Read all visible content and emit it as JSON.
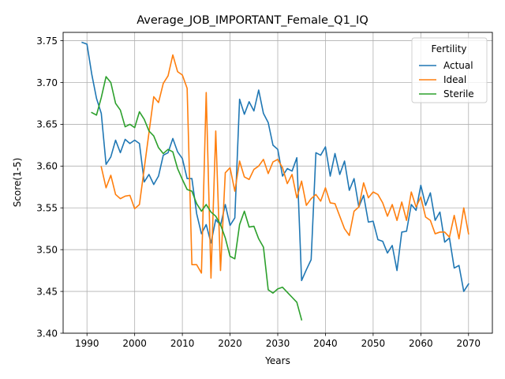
{
  "chart_data": {
    "type": "line",
    "title": "Average_JOB_IMPORTANT_Female_Q1_IQ",
    "xlabel": "Years",
    "ylabel": "Score(1-5)",
    "xlim": [
      1985,
      2075
    ],
    "ylim": [
      3.4,
      3.76
    ],
    "xticks": [
      1990,
      2000,
      2010,
      2020,
      2030,
      2040,
      2050,
      2060,
      2070
    ],
    "xtick_labels": [
      "1990",
      "2000",
      "2010",
      "2020",
      "2030",
      "2040",
      "2050",
      "2060",
      "2070"
    ],
    "yticks": [
      3.4,
      3.45,
      3.5,
      3.55,
      3.6,
      3.65,
      3.7,
      3.75
    ],
    "ytick_labels": [
      "3.40",
      "3.45",
      "3.50",
      "3.55",
      "3.60",
      "3.65",
      "3.70",
      "3.75"
    ],
    "grid": true,
    "legend": {
      "title": "Fertility",
      "placement": "top-right",
      "entries": [
        "Actual",
        "Ideal",
        "Sterile"
      ]
    },
    "series": [
      {
        "name": "Actual",
        "color": "#1f77b4",
        "x": [
          1989,
          1990,
          1991,
          1992,
          1993,
          1994,
          1995,
          1996,
          1997,
          1998,
          1999,
          2000,
          2001,
          2002,
          2003,
          2004,
          2005,
          2006,
          2007,
          2008,
          2009,
          2010,
          2011,
          2012,
          2013,
          2014,
          2015,
          2016,
          2017,
          2018,
          2019,
          2020,
          2021,
          2022,
          2023,
          2024,
          2025,
          2026,
          2027,
          2028,
          2029,
          2030,
          2031,
          2032,
          2033,
          2034,
          2035,
          2036,
          2037,
          2038,
          2039,
          2040,
          2041,
          2042,
          2043,
          2044,
          2045,
          2046,
          2047,
          2048,
          2049,
          2050,
          2051,
          2052,
          2053,
          2054,
          2055,
          2056,
          2057,
          2058,
          2059,
          2060,
          2061,
          2062,
          2063,
          2064,
          2065,
          2066,
          2067,
          2068,
          2069,
          2070
        ],
        "y": [
          3.748,
          3.746,
          3.71,
          3.681,
          3.663,
          3.602,
          3.611,
          3.631,
          3.616,
          3.632,
          3.627,
          3.631,
          3.627,
          3.581,
          3.59,
          3.578,
          3.588,
          3.613,
          3.616,
          3.633,
          3.617,
          3.609,
          3.585,
          3.585,
          3.543,
          3.519,
          3.53,
          3.508,
          3.536,
          3.529,
          3.554,
          3.529,
          3.538,
          3.68,
          3.662,
          3.677,
          3.666,
          3.691,
          3.663,
          3.652,
          3.625,
          3.62,
          3.588,
          3.597,
          3.594,
          3.61,
          3.463,
          3.476,
          3.488,
          3.616,
          3.613,
          3.623,
          3.588,
          3.615,
          3.59,
          3.606,
          3.571,
          3.585,
          3.551,
          3.565,
          3.533,
          3.534,
          3.512,
          3.51,
          3.496,
          3.505,
          3.475,
          3.521,
          3.522,
          3.554,
          3.547,
          3.577,
          3.553,
          3.568,
          3.535,
          3.545,
          3.509,
          3.514,
          3.478,
          3.481,
          3.45,
          3.459
        ]
      },
      {
        "name": "Ideal",
        "color": "#ff7f0e",
        "x": [
          1993,
          1994,
          1995,
          1996,
          1997,
          1998,
          1999,
          2000,
          2001,
          2002,
          2003,
          2004,
          2005,
          2006,
          2007,
          2008,
          2009,
          2010,
          2011,
          2012,
          2013,
          2014,
          2015,
          2016,
          2017,
          2018,
          2019,
          2020,
          2021,
          2022,
          2023,
          2024,
          2025,
          2026,
          2027,
          2028,
          2029,
          2030,
          2031,
          2032,
          2033,
          2034,
          2035,
          2036,
          2037,
          2038,
          2039,
          2040,
          2041,
          2042,
          2043,
          2044,
          2045,
          2046,
          2047,
          2048,
          2049,
          2050,
          2051,
          2052,
          2053,
          2054,
          2055,
          2056,
          2057,
          2058,
          2059,
          2060,
          2061,
          2062,
          2063,
          2064,
          2065,
          2066,
          2067,
          2068,
          2069,
          2070
        ],
        "y": [
          3.599,
          3.574,
          3.589,
          3.566,
          3.561,
          3.564,
          3.565,
          3.549,
          3.554,
          3.597,
          3.64,
          3.683,
          3.676,
          3.699,
          3.708,
          3.733,
          3.713,
          3.709,
          3.693,
          3.482,
          3.482,
          3.472,
          3.688,
          3.466,
          3.642,
          3.475,
          3.592,
          3.598,
          3.57,
          3.606,
          3.587,
          3.584,
          3.596,
          3.6,
          3.608,
          3.591,
          3.605,
          3.608,
          3.598,
          3.579,
          3.59,
          3.562,
          3.582,
          3.553,
          3.561,
          3.566,
          3.558,
          3.574,
          3.556,
          3.555,
          3.54,
          3.525,
          3.517,
          3.546,
          3.551,
          3.58,
          3.562,
          3.569,
          3.566,
          3.556,
          3.54,
          3.554,
          3.535,
          3.557,
          3.535,
          3.569,
          3.551,
          3.563,
          3.539,
          3.535,
          3.519,
          3.521,
          3.521,
          3.515,
          3.541,
          3.513,
          3.55,
          3.519
        ]
      },
      {
        "name": "Sterile",
        "color": "#2ca02c",
        "x": [
          1991,
          1992,
          1993,
          1994,
          1995,
          1996,
          1997,
          1998,
          1999,
          2000,
          2001,
          2002,
          2003,
          2004,
          2005,
          2006,
          2007,
          2008,
          2009,
          2010,
          2011,
          2012,
          2013,
          2014,
          2015,
          2016,
          2017,
          2018,
          2019,
          2020,
          2021,
          2022,
          2023,
          2024,
          2025,
          2026,
          2027,
          2028,
          2029,
          2030,
          2031,
          2032,
          2033,
          2034,
          2035
        ],
        "y": [
          3.664,
          3.661,
          3.682,
          3.707,
          3.7,
          3.675,
          3.667,
          3.647,
          3.65,
          3.646,
          3.665,
          3.656,
          3.642,
          3.636,
          3.622,
          3.615,
          3.62,
          3.617,
          3.597,
          3.584,
          3.572,
          3.57,
          3.555,
          3.546,
          3.554,
          3.545,
          3.54,
          3.53,
          3.514,
          3.492,
          3.489,
          3.53,
          3.546,
          3.527,
          3.528,
          3.513,
          3.503,
          3.452,
          3.448,
          3.453,
          3.455,
          3.449,
          3.443,
          3.437,
          3.416
        ]
      }
    ]
  }
}
